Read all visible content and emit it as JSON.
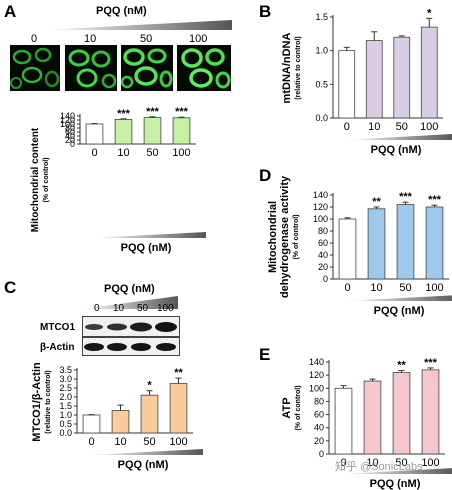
{
  "panel_letters": [
    "A",
    "B",
    "C",
    "D",
    "E"
  ],
  "microscopy": {
    "header": "PQQ (nM)",
    "concentrations": [
      "0",
      "10",
      "50",
      "100"
    ]
  },
  "western_blot": {
    "header": "PQQ (nM)",
    "concentrations": [
      "0",
      "10",
      "50",
      "100"
    ],
    "bands": [
      "MTCO1",
      "β-Actin"
    ]
  },
  "watermark": "知乎 @SonicLabs",
  "colors": {
    "green": "#c6f0a6",
    "purple": "#d9cde6",
    "orange": "#f9cc9e",
    "blue": "#9ec9ec",
    "pink": "#f5c7cc",
    "control": "#ffffff"
  },
  "chart_data": [
    {
      "id": "A",
      "type": "bar",
      "categories": [
        "0",
        "10",
        "50",
        "100"
      ],
      "values": [
        100,
        123,
        132,
        131
      ],
      "errors": [
        2,
        3,
        4,
        3
      ],
      "significance": [
        "",
        "***",
        "***",
        "***"
      ],
      "ylabel": "Mitochondrial content",
      "ysublabel": "(% of control)",
      "xlabel": "PQQ (nM)",
      "ylim": [
        0,
        140
      ],
      "yticks": [
        "0",
        "20",
        "40",
        "60",
        "80",
        "100",
        "120",
        "140"
      ],
      "color_key": "green"
    },
    {
      "id": "B",
      "type": "bar",
      "categories": [
        "0",
        "10",
        "50",
        "100"
      ],
      "values": [
        1.0,
        1.15,
        1.2,
        1.35
      ],
      "errors": [
        0.05,
        0.13,
        0.02,
        0.13
      ],
      "significance": [
        "",
        "",
        "",
        "*"
      ],
      "ylabel": "mtDNA/nDNA",
      "ysublabel": "(relative to control)",
      "xlabel": "PQQ (nM)",
      "ylim": [
        0,
        1.5
      ],
      "yticks": [
        "0.0",
        "0.5",
        "1.0",
        "1.5"
      ],
      "color_key": "purple"
    },
    {
      "id": "C",
      "type": "bar",
      "categories": [
        "0",
        "10",
        "50",
        "100"
      ],
      "values": [
        1.0,
        1.25,
        2.1,
        2.75
      ],
      "errors": [
        0.02,
        0.3,
        0.25,
        0.3
      ],
      "significance": [
        "",
        "",
        "*",
        "**"
      ],
      "ylabel": "MTCO1/β-Actin",
      "ysublabel": "(relative to control)",
      "xlabel": "PQQ (nM)",
      "ylim": [
        0,
        3.5
      ],
      "yticks": [
        "0.0",
        "0.5",
        "1.0",
        "1.5",
        "2.0",
        "2.5",
        "3.0",
        "3.5"
      ],
      "color_key": "orange"
    },
    {
      "id": "D",
      "type": "bar",
      "categories": [
        "0",
        "10",
        "50",
        "100"
      ],
      "values": [
        100,
        117,
        124,
        120
      ],
      "errors": [
        2,
        3,
        4,
        3
      ],
      "significance": [
        "",
        "**",
        "***",
        "***"
      ],
      "ylabel": "Mitochondrial",
      "ylabel2": "dehydrogenase activity",
      "ysublabel": "(% of control)",
      "xlabel": "PQQ (nM)",
      "ylim": [
        0,
        140
      ],
      "yticks": [
        "0",
        "20",
        "40",
        "60",
        "80",
        "100",
        "120",
        "140"
      ],
      "color_key": "blue"
    },
    {
      "id": "E",
      "type": "bar",
      "categories": [
        "0",
        "10",
        "50",
        "100"
      ],
      "values": [
        100,
        111,
        124,
        128
      ],
      "errors": [
        4,
        3,
        3,
        3
      ],
      "significance": [
        "",
        "",
        "**",
        "***"
      ],
      "ylabel": "ATP",
      "ysublabel": "(% of control)",
      "xlabel": "PQQ (nM)",
      "ylim": [
        0,
        140
      ],
      "yticks": [
        "0",
        "20",
        "40",
        "60",
        "80",
        "100",
        "120",
        "140"
      ],
      "color_key": "pink"
    }
  ]
}
